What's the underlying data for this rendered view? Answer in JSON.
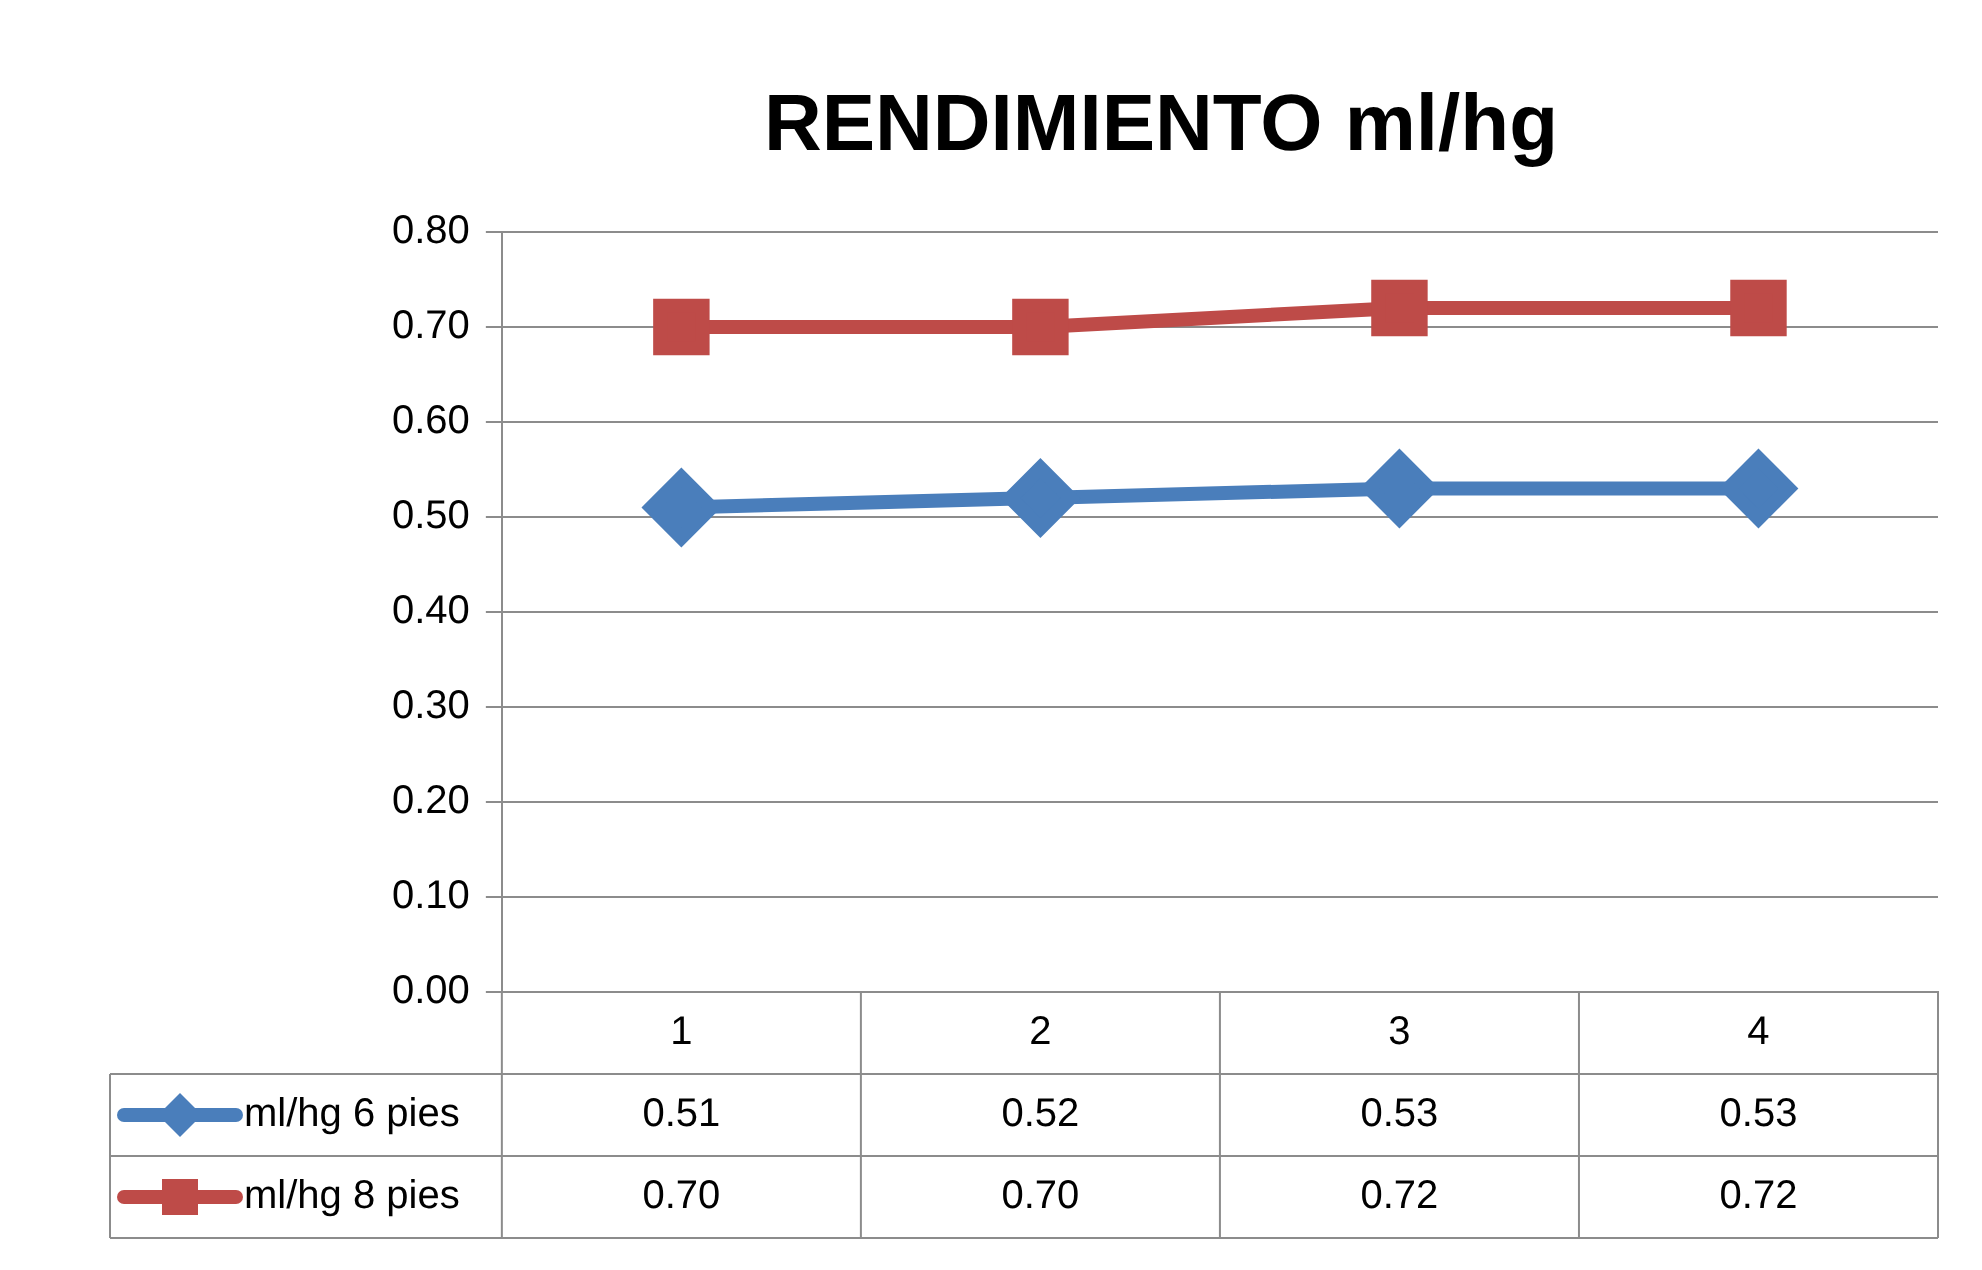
{
  "chart_data": {
    "type": "line",
    "title": "RENDIMIENTO ml/hg",
    "categories": [
      "1",
      "2",
      "3",
      "4"
    ],
    "series": [
      {
        "name": "ml/hg 6 pies",
        "color": "#4a7ebb",
        "marker": "diamond",
        "values": [
          0.51,
          0.52,
          0.53,
          0.53
        ],
        "value_labels": [
          "0.51",
          "0.52",
          "0.53",
          "0.53"
        ]
      },
      {
        "name": "ml/hg 8 pies",
        "color": "#be4b48",
        "marker": "square",
        "values": [
          0.7,
          0.7,
          0.72,
          0.72
        ],
        "value_labels": [
          "0.70",
          "0.70",
          "0.72",
          "0.72"
        ]
      }
    ],
    "ylim": [
      0,
      0.8
    ],
    "yticks": [
      {
        "value": 0,
        "label": "0.00"
      },
      {
        "value": 0.1,
        "label": "0.10"
      },
      {
        "value": 0.2,
        "label": "0.20"
      },
      {
        "value": 0.3,
        "label": "0.30"
      },
      {
        "value": 0.4,
        "label": "0.40"
      },
      {
        "value": 0.5,
        "label": "0.50"
      },
      {
        "value": 0.6,
        "label": "0.60"
      },
      {
        "value": 0.7,
        "label": "0.70"
      },
      {
        "value": 0.8,
        "label": "0.80"
      }
    ],
    "grid": "y",
    "legend": "bottom"
  }
}
